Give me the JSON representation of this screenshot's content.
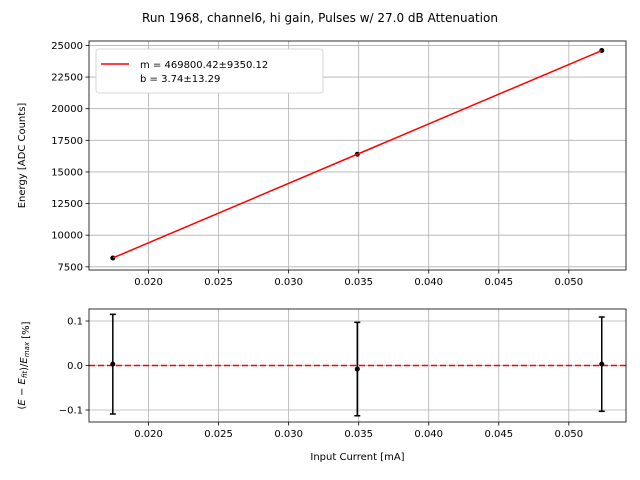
{
  "title": "Run 1968, channel6, hi gain, Pulses w/ 27.0 dB Attenuation",
  "colors": {
    "fit_line": "#ff0000",
    "points": "#000000",
    "grid": "#b0b0b0",
    "zero_line": "#ff0000"
  },
  "chart_data": [
    {
      "type": "scatter",
      "panel": "top",
      "ylabel": "Energy [ADC Counts]",
      "xlabel": "",
      "xlim": [
        0.01575,
        0.05408
      ],
      "ylim": [
        7250,
        25350
      ],
      "xticks": [
        0.02,
        0.025,
        0.03,
        0.035,
        0.04,
        0.045,
        0.05
      ],
      "xtick_labels": [
        "0.020",
        "0.025",
        "0.030",
        "0.035",
        "0.040",
        "0.045",
        "0.050"
      ],
      "yticks": [
        7500,
        10000,
        12500,
        15000,
        17500,
        20000,
        22500,
        25000
      ],
      "ytick_labels": [
        "7500",
        "10000",
        "12500",
        "15000",
        "17500",
        "20000",
        "22500",
        "25000"
      ],
      "grid": true,
      "legend": {
        "placement": "top-left",
        "entries": [
          "m = 469800.42±9350.12",
          "b = 3.74±13.29"
        ]
      },
      "series": [
        {
          "kind": "points",
          "x": [
            0.01745,
            0.0349,
            0.05235
          ],
          "y": [
            8200,
            16400,
            24600
          ]
        },
        {
          "kind": "fit-line",
          "x": [
            0.01745,
            0.05235
          ],
          "y": [
            8202,
            24598
          ]
        }
      ]
    },
    {
      "type": "scatter",
      "panel": "bottom",
      "ylabel": "(E − E_fit)/E_max [%]",
      "xlabel": "Input Current [mA]",
      "xlim": [
        0.01575,
        0.05408
      ],
      "ylim": [
        -0.127,
        0.127
      ],
      "xticks": [
        0.02,
        0.025,
        0.03,
        0.035,
        0.04,
        0.045,
        0.05
      ],
      "xtick_labels": [
        "0.020",
        "0.025",
        "0.030",
        "0.035",
        "0.040",
        "0.045",
        "0.050"
      ],
      "yticks": [
        -0.1,
        0.0,
        0.1
      ],
      "ytick_labels": [
        "−0.1",
        "0.0",
        "0.1"
      ],
      "grid": true,
      "reference_line": 0.0,
      "series": [
        {
          "kind": "errorbar-points",
          "x": [
            0.01745,
            0.0349,
            0.05235
          ],
          "y": [
            0.003,
            -0.008,
            0.003
          ],
          "yerr": [
            0.112,
            0.105,
            0.106
          ]
        }
      ]
    }
  ]
}
